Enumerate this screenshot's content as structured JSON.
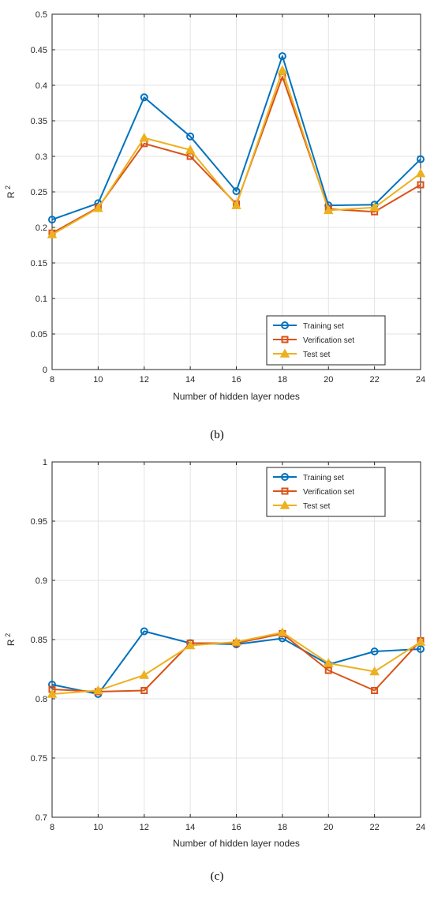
{
  "chart_data": [
    {
      "type": "line",
      "caption": "(b)",
      "xlabel": "Number of hidden layer nodes",
      "ylabel_base": "R",
      "ylabel_sup": "2",
      "x": [
        8,
        10,
        12,
        14,
        16,
        18,
        20,
        22,
        24
      ],
      "xlim": [
        8,
        24
      ],
      "ylim": [
        0,
        0.5
      ],
      "xticks": [
        "8",
        "10",
        "12",
        "14",
        "16",
        "18",
        "20",
        "22",
        "24"
      ],
      "yticks": [
        "0",
        "0.05",
        "0.1",
        "0.15",
        "0.2",
        "0.25",
        "0.3",
        "0.35",
        "0.4",
        "0.45",
        "0.5"
      ],
      "ytick_values": [
        0,
        0.05,
        0.1,
        0.15,
        0.2,
        0.25,
        0.3,
        0.35,
        0.4,
        0.45,
        0.5
      ],
      "grid": true,
      "legend_position": "bottom-right",
      "series": [
        {
          "name": "Training set",
          "color": "#0072BD",
          "marker": "circle",
          "values": [
            0.211,
            0.234,
            0.383,
            0.328,
            0.251,
            0.441,
            0.231,
            0.232,
            0.296
          ]
        },
        {
          "name": "Verification set",
          "color": "#D95319",
          "marker": "square",
          "values": [
            0.192,
            0.228,
            0.318,
            0.3,
            0.233,
            0.412,
            0.226,
            0.222,
            0.26
          ]
        },
        {
          "name": "Test set",
          "color": "#EDB120",
          "marker": "triangle",
          "values": [
            0.19,
            0.227,
            0.326,
            0.309,
            0.231,
            0.421,
            0.224,
            0.228,
            0.276
          ]
        }
      ]
    },
    {
      "type": "line",
      "caption": "(c)",
      "xlabel": "Number of hidden layer nodes",
      "ylabel_base": "R",
      "ylabel_sup": "2",
      "x": [
        8,
        10,
        12,
        14,
        16,
        18,
        20,
        22,
        24
      ],
      "xlim": [
        8,
        24
      ],
      "ylim": [
        0.7,
        1.0
      ],
      "xticks": [
        "8",
        "10",
        "12",
        "14",
        "16",
        "18",
        "20",
        "22",
        "24"
      ],
      "yticks": [
        "0.7",
        "0.75",
        "0.8",
        "0.85",
        "0.9",
        "0.95",
        "1"
      ],
      "ytick_values": [
        0.7,
        0.75,
        0.8,
        0.85,
        0.9,
        0.95,
        1.0
      ],
      "grid": true,
      "legend_position": "top-right",
      "series": [
        {
          "name": "Training set",
          "color": "#0072BD",
          "marker": "circle",
          "values": [
            0.812,
            0.804,
            0.857,
            0.847,
            0.846,
            0.851,
            0.829,
            0.84,
            0.842
          ]
        },
        {
          "name": "Verification set",
          "color": "#D95319",
          "marker": "square",
          "values": [
            0.808,
            0.806,
            0.807,
            0.847,
            0.847,
            0.855,
            0.824,
            0.807,
            0.849
          ]
        },
        {
          "name": "Test set",
          "color": "#EDB120",
          "marker": "triangle",
          "values": [
            0.804,
            0.807,
            0.82,
            0.845,
            0.848,
            0.856,
            0.83,
            0.823,
            0.848
          ]
        }
      ]
    }
  ]
}
